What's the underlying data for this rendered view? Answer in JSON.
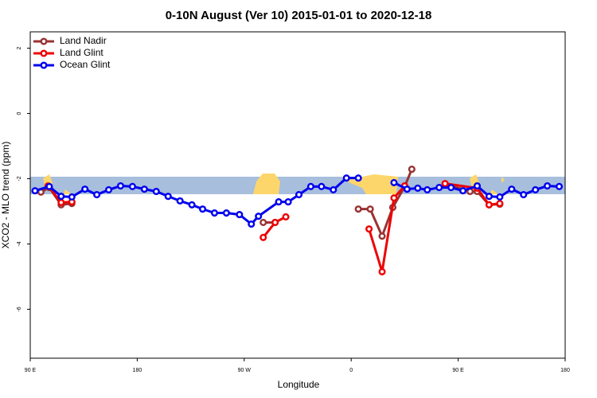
{
  "chart_data": {
    "type": "line",
    "title": "0-10N August (Ver 10)   2015-01-01 to 2020-12-18",
    "x_label": "Longitude",
    "y_label": "XCO2 - MLO trend (ppm)",
    "xlim": [
      90,
      540
    ],
    "xticks": [
      {
        "value": 90,
        "label": "90 E"
      },
      {
        "value": 180,
        "label": "180"
      },
      {
        "value": 270,
        "label": "90 W"
      },
      {
        "value": 360,
        "label": "0"
      },
      {
        "value": 450,
        "label": "90 E"
      },
      {
        "value": 540,
        "label": "180"
      }
    ],
    "ylim": [
      -7.5,
      2.5
    ],
    "yticks": [
      -6,
      -4,
      -2,
      0,
      2
    ],
    "legend": "top-left",
    "series": [
      {
        "name": "Land Nadir",
        "color": "#993333",
        "x": [
          99,
          106,
          116,
          125,
          200,
          286,
          296,
          330,
          366,
          376,
          386,
          395,
          405,
          411,
          425,
          439,
          460,
          466,
          476,
          485
        ],
        "values": [
          -2.41,
          -2.27,
          -2.8,
          -2.76,
          null,
          -3.34,
          -3.34,
          null,
          -2.93,
          -2.93,
          -3.76,
          -2.88,
          -2.24,
          -1.71,
          null,
          -2.17,
          -2.39,
          -2.39,
          -2.8,
          -2.78
        ]
      },
      {
        "name": "Land Glint",
        "color": "#ee0000",
        "x": [
          105,
          116,
          125,
          200,
          286,
          296,
          305,
          340,
          375,
          386,
          396,
          405,
          420,
          439,
          466,
          476,
          485
        ],
        "values": [
          -2.22,
          -2.73,
          -2.71,
          null,
          -3.8,
          -3.34,
          -3.17,
          null,
          -3.54,
          -4.85,
          -2.59,
          -2.22,
          null,
          -2.15,
          -2.29,
          -2.8,
          -2.76
        ]
      },
      {
        "name": "Ocean Glint",
        "color": "#0000ee",
        "x": [
          94,
          106,
          116,
          125,
          136,
          146,
          156,
          166,
          176,
          186,
          196,
          206,
          216,
          226,
          235,
          245,
          255,
          266,
          276,
          282,
          299,
          307,
          316,
          326,
          335,
          345,
          356,
          366,
          381,
          396,
          407,
          416,
          424,
          434,
          444,
          454,
          466,
          476,
          485,
          495,
          505,
          515,
          525,
          535
        ],
        "values": [
          -2.37,
          -2.24,
          -2.54,
          -2.56,
          -2.32,
          -2.49,
          -2.34,
          -2.22,
          -2.24,
          -2.32,
          -2.39,
          -2.54,
          -2.68,
          -2.8,
          -2.93,
          -3.05,
          -3.05,
          -3.1,
          -3.39,
          -3.15,
          -2.71,
          -2.71,
          -2.49,
          -2.24,
          -2.24,
          -2.34,
          -1.98,
          -1.98,
          null,
          -2.12,
          -2.32,
          -2.29,
          -2.34,
          -2.27,
          -2.27,
          -2.37,
          -2.22,
          -2.54,
          -2.56,
          -2.32,
          -2.49,
          -2.34,
          -2.22,
          -2.24
        ]
      }
    ]
  }
}
